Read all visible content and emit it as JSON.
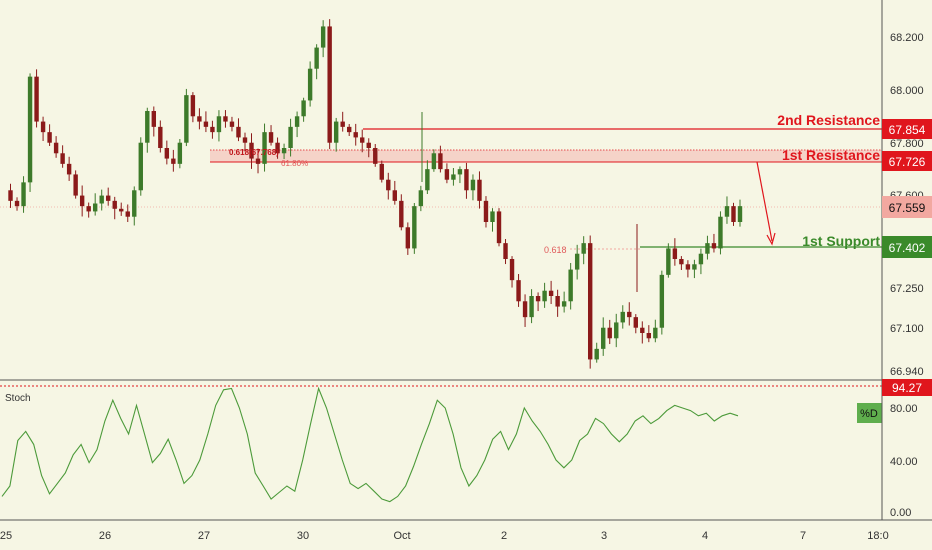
{
  "colors": {
    "background": "#f6f6e4",
    "up": "#3d7a2a",
    "down": "#8b1a1a",
    "resistance": "#e0161d",
    "support": "#3a8a2a",
    "zone": "#f4b6b0",
    "stoch": "#4c9a3a",
    "current": "#f2a8a0"
  },
  "chart_data": [
    {
      "type": "line",
      "subtype": "candlestick",
      "y_axis_ticks": [
        "68.200",
        "68.000",
        "67.800",
        "67.600",
        "67.250",
        "67.100",
        "66.940"
      ],
      "x_axis_ticks": [
        "25",
        "26",
        "27",
        "30",
        "Oct",
        "2",
        "3",
        "4",
        "7",
        "18:0"
      ],
      "levels": [
        {
          "name": "2nd Resistance",
          "value": "67.854",
          "role": "resistance"
        },
        {
          "name": "1st Resistance",
          "value": "67.726",
          "role": "resistance"
        },
        {
          "name": "1st Support",
          "value": "67.402",
          "role": "support"
        }
      ],
      "current_price": "67.559",
      "fib_annotations": [
        {
          "text": "0.618(67.768)"
        },
        {
          "text": "61.80%"
        },
        {
          "text": "0.618"
        }
      ],
      "price_path": [
        67.62,
        67.58,
        67.56,
        67.65,
        68.05,
        67.88,
        67.84,
        67.8,
        67.76,
        67.72,
        67.68,
        67.6,
        67.56,
        67.54,
        67.57,
        67.6,
        67.58,
        67.55,
        67.54,
        67.52,
        67.62,
        67.8,
        67.92,
        67.86,
        67.78,
        67.74,
        67.72,
        67.8,
        67.98,
        67.9,
        67.88,
        67.86,
        67.84,
        67.9,
        67.88,
        67.86,
        67.82,
        67.8,
        67.74,
        67.72,
        67.84,
        67.8,
        67.76,
        67.78,
        67.86,
        67.9,
        67.96,
        68.08,
        68.16,
        68.24,
        67.8,
        67.88,
        67.86,
        67.84,
        67.82,
        67.8,
        67.78,
        67.72,
        67.66,
        67.62,
        67.58,
        67.48,
        67.4,
        67.56,
        67.62,
        67.7,
        67.76,
        67.7,
        67.66,
        67.68,
        67.7,
        67.62,
        67.66,
        67.58,
        67.5,
        67.54,
        67.42,
        67.36,
        67.28,
        67.2,
        67.14,
        67.22,
        67.2,
        67.24,
        67.22,
        67.18,
        67.2,
        67.32,
        67.38,
        67.42,
        66.98,
        67.02,
        67.1,
        67.06,
        67.12,
        67.16,
        67.14,
        67.1,
        67.08,
        67.06,
        67.1,
        67.3,
        67.4,
        67.36,
        67.34,
        67.32,
        67.34,
        67.38,
        67.42,
        67.4,
        67.52,
        67.56,
        67.5,
        67.56
      ],
      "stoch_ticks": [
        "80.00",
        "40.00",
        "0.00"
      ],
      "stoch_label": "Stoch",
      "stoch_d_label": "%D",
      "stoch_level_value": "94.27",
      "stoch_d": [
        12,
        20,
        55,
        62,
        52,
        28,
        14,
        22,
        30,
        44,
        52,
        38,
        48,
        70,
        86,
        72,
        60,
        82,
        60,
        38,
        45,
        56,
        40,
        22,
        28,
        40,
        60,
        82,
        94,
        95,
        80,
        60,
        30,
        20,
        10,
        15,
        20,
        16,
        40,
        68,
        95,
        80,
        60,
        40,
        22,
        18,
        22,
        16,
        10,
        8,
        12,
        20,
        35,
        52,
        68,
        86,
        80,
        60,
        34,
        20,
        28,
        40,
        56,
        62,
        48,
        60,
        80,
        70,
        62,
        52,
        40,
        34,
        40,
        55,
        60,
        72,
        68,
        60,
        54,
        60,
        70,
        74,
        68,
        72,
        78,
        82,
        80,
        78,
        74,
        76,
        70,
        74,
        76,
        74
      ],
      "annotations": [
        "Stoch"
      ]
    }
  ]
}
